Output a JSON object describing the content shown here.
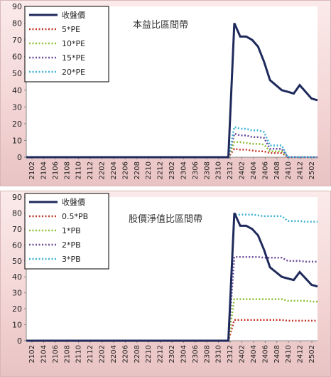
{
  "chart_data": [
    {
      "type": "line",
      "title": "本益比區間帶",
      "xlabel": "",
      "ylabel": "",
      "ylim": [
        0,
        90
      ],
      "yticks": [
        0,
        10,
        20,
        30,
        40,
        50,
        60,
        70,
        80,
        90
      ],
      "x_tick_labels": [
        "2102",
        "2104",
        "2106",
        "2108",
        "2110",
        "2112",
        "2202",
        "2204",
        "2206",
        "2208",
        "2210",
        "2212",
        "2302",
        "2304",
        "2306",
        "2308",
        "2310",
        "2312",
        "2402",
        "2404",
        "2406",
        "2408",
        "2410",
        "2412",
        "2502"
      ],
      "legend_position": "top-left",
      "grid": false,
      "series": [
        {
          "name": "收盤價",
          "color": "#1f2a5c",
          "style": "solid",
          "values": [
            0,
            0,
            0,
            0,
            0,
            0,
            0,
            0,
            0,
            0,
            0,
            0,
            0,
            0,
            0,
            0,
            0,
            0,
            0,
            0,
            0,
            0,
            0,
            0,
            0,
            0,
            0,
            0,
            0,
            0,
            0,
            0,
            0,
            0,
            0,
            80,
            72,
            72,
            70,
            66,
            57,
            46,
            43,
            40,
            39,
            38,
            43,
            39,
            35,
            34
          ]
        },
        {
          "name": "5*PE",
          "color": "#c0392b",
          "style": "dotted",
          "values": [
            0,
            0,
            0,
            0,
            0,
            0,
            0,
            0,
            0,
            0,
            0,
            0,
            0,
            0,
            0,
            0,
            0,
            0,
            0,
            0,
            0,
            0,
            0,
            0,
            0,
            0,
            0,
            0,
            0,
            0,
            0,
            0,
            0,
            0,
            0,
            5,
            4.5,
            4.5,
            4,
            3.5,
            3.5,
            2.5,
            2.5,
            2.5,
            0,
            0,
            0,
            0,
            0,
            0
          ]
        },
        {
          "name": "10*PE",
          "color": "#8fbf3a",
          "style": "dotted",
          "values": [
            0,
            0,
            0,
            0,
            0,
            0,
            0,
            0,
            0,
            0,
            0,
            0,
            0,
            0,
            0,
            0,
            0,
            0,
            0,
            0,
            0,
            0,
            0,
            0,
            0,
            0,
            0,
            0,
            0,
            0,
            0,
            0,
            0,
            0,
            0,
            9,
            9,
            8.5,
            8,
            8,
            7.5,
            3.5,
            3.5,
            3.5,
            0,
            0,
            0,
            0,
            0,
            0
          ]
        },
        {
          "name": "15*PE",
          "color": "#6b4c9a",
          "style": "dotted",
          "values": [
            0,
            0,
            0,
            0,
            0,
            0,
            0,
            0,
            0,
            0,
            0,
            0,
            0,
            0,
            0,
            0,
            0,
            0,
            0,
            0,
            0,
            0,
            0,
            0,
            0,
            0,
            0,
            0,
            0,
            0,
            0,
            0,
            0,
            0,
            0,
            14,
            13,
            13,
            12,
            12,
            11.5,
            5,
            5,
            5,
            0,
            0,
            0,
            0,
            0,
            0
          ]
        },
        {
          "name": "20*PE",
          "color": "#3fb3d6",
          "style": "dotted",
          "values": [
            0,
            0,
            0,
            0,
            0,
            0,
            0,
            0,
            0,
            0,
            0,
            0,
            0,
            0,
            0,
            0,
            0,
            0,
            0,
            0,
            0,
            0,
            0,
            0,
            0,
            0,
            0,
            0,
            0,
            0,
            0,
            0,
            0,
            0,
            0,
            18,
            17,
            17,
            16,
            16,
            15,
            7,
            7,
            7,
            0,
            0,
            0,
            0,
            0,
            0
          ]
        }
      ]
    },
    {
      "type": "line",
      "title": "股價淨值比區間帶",
      "xlabel": "",
      "ylabel": "",
      "ylim": [
        0,
        90
      ],
      "yticks": [
        0,
        10,
        20,
        30,
        40,
        50,
        60,
        70,
        80,
        90
      ],
      "x_tick_labels": [
        "2102",
        "2104",
        "2106",
        "2108",
        "2110",
        "2112",
        "2202",
        "2204",
        "2206",
        "2208",
        "2210",
        "2212",
        "2302",
        "2304",
        "2306",
        "2308",
        "2310",
        "2312",
        "2402",
        "2404",
        "2406",
        "2408",
        "2410",
        "2412",
        "2502"
      ],
      "legend_position": "top-left",
      "grid": false,
      "series": [
        {
          "name": "收盤價",
          "color": "#1f2a5c",
          "style": "solid",
          "values": [
            0,
            0,
            0,
            0,
            0,
            0,
            0,
            0,
            0,
            0,
            0,
            0,
            0,
            0,
            0,
            0,
            0,
            0,
            0,
            0,
            0,
            0,
            0,
            0,
            0,
            0,
            0,
            0,
            0,
            0,
            0,
            0,
            0,
            0,
            0,
            80,
            72,
            72,
            70,
            66,
            57,
            46,
            43,
            40,
            39,
            38,
            43,
            39,
            35,
            34
          ]
        },
        {
          "name": "0.5*PB",
          "color": "#c0392b",
          "style": "dotted",
          "values": [
            0,
            0,
            0,
            0,
            0,
            0,
            0,
            0,
            0,
            0,
            0,
            0,
            0,
            0,
            0,
            0,
            0,
            0,
            0,
            0,
            0,
            0,
            0,
            0,
            0,
            0,
            0,
            0,
            0,
            0,
            0,
            0,
            0,
            0,
            0,
            13,
            13,
            13,
            13,
            13,
            13,
            13,
            13,
            13,
            12.5,
            12.5,
            12.5,
            12.5,
            12.5,
            12.5
          ]
        },
        {
          "name": "1*PB",
          "color": "#8fbf3a",
          "style": "dotted",
          "values": [
            0,
            0,
            0,
            0,
            0,
            0,
            0,
            0,
            0,
            0,
            0,
            0,
            0,
            0,
            0,
            0,
            0,
            0,
            0,
            0,
            0,
            0,
            0,
            0,
            0,
            0,
            0,
            0,
            0,
            0,
            0,
            0,
            0,
            0,
            0,
            26,
            26,
            26,
            26,
            26,
            26,
            26,
            26,
            26,
            25,
            25,
            25,
            25,
            24.5,
            24.5
          ]
        },
        {
          "name": "2*PB",
          "color": "#6b4c9a",
          "style": "dotted",
          "values": [
            0,
            0,
            0,
            0,
            0,
            0,
            0,
            0,
            0,
            0,
            0,
            0,
            0,
            0,
            0,
            0,
            0,
            0,
            0,
            0,
            0,
            0,
            0,
            0,
            0,
            0,
            0,
            0,
            0,
            0,
            0,
            0,
            0,
            0,
            0,
            52.5,
            52.5,
            52.5,
            52.5,
            52.5,
            52,
            52,
            52,
            52,
            50,
            50,
            50,
            49.5,
            49.5,
            49.5
          ]
        },
        {
          "name": "3*PB",
          "color": "#3fb3d6",
          "style": "dotted",
          "values": [
            0,
            0,
            0,
            0,
            0,
            0,
            0,
            0,
            0,
            0,
            0,
            0,
            0,
            0,
            0,
            0,
            0,
            0,
            0,
            0,
            0,
            0,
            0,
            0,
            0,
            0,
            0,
            0,
            0,
            0,
            0,
            0,
            0,
            0,
            0,
            79,
            79,
            79,
            79,
            78.5,
            78,
            78,
            78,
            78,
            75,
            75,
            75,
            74.5,
            74.5,
            74.5
          ]
        }
      ]
    }
  ]
}
